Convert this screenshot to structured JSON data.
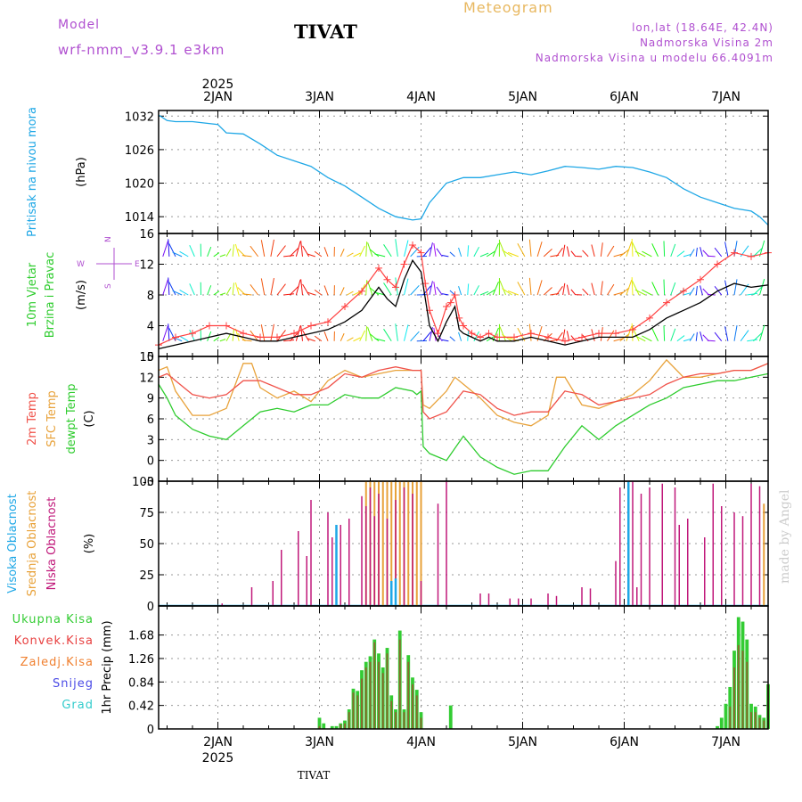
{
  "header": {
    "model_label": "Model",
    "model_name": "wrf-nmm_v3.9.1 e3km",
    "station": "TIVAT",
    "chart_title": "Meteogram",
    "coords": "lon,lat (18.64E, 42.4N)",
    "altitude": "Nadmorska Visina 2m",
    "model_altitude": "Nadmorska Visina u modelu 66.4091m",
    "footer_station": "TIVAT",
    "credit": "made by Angel"
  },
  "colors": {
    "pressure": "#1ea7e6",
    "wind_speed": "#000000",
    "wind_gust": "#ff4040",
    "temp2m": "#f0524a",
    "sfc_temp": "#e8a23a",
    "dewpoint": "#2ecc2e",
    "high_cloud": "#1ea7e6",
    "mid_cloud": "#e8a23a",
    "low_cloud": "#c0187a",
    "total_precip": "#33cc33",
    "conv_precip": "#e84040",
    "freezing": "#f08030",
    "snow": "#4a4ae6",
    "hail": "#33cccc",
    "grid": "#999999"
  },
  "chart_data": {
    "type": "meteogram",
    "year": "2025",
    "time_axis": {
      "start_hour": -14,
      "end_hour": 130,
      "ticks": [
        {
          "hour": 0,
          "label": "2JAN"
        },
        {
          "hour": 24,
          "label": "3JAN"
        },
        {
          "hour": 48,
          "label": "4JAN"
        },
        {
          "hour": 72,
          "label": "5JAN"
        },
        {
          "hour": 96,
          "label": "6JAN"
        },
        {
          "hour": 120,
          "label": "7JAN"
        }
      ]
    },
    "panels": [
      {
        "id": "pressure",
        "ylabel": [
          "Pritisak na nivou mora",
          "(hPa)"
        ],
        "ylim": [
          1011,
          1033
        ],
        "yticks": [
          1014,
          1020,
          1026,
          1032
        ],
        "series": [
          {
            "name": "MSLP",
            "x": [
              -14,
              -12,
              -10,
              -6,
              0,
              2,
              6,
              10,
              14,
              18,
              22,
              26,
              30,
              34,
              38,
              42,
              46,
              48,
              50,
              54,
              58,
              62,
              66,
              70,
              74,
              78,
              82,
              86,
              90,
              94,
              98,
              102,
              106,
              110,
              114,
              118,
              122,
              126,
              128,
              130
            ],
            "y": [
              1032.2,
              1031.2,
              1031.0,
              1031.0,
              1030.5,
              1029.0,
              1028.8,
              1027.0,
              1025.0,
              1024.0,
              1023.0,
              1021.0,
              1019.5,
              1017.5,
              1015.5,
              1014.0,
              1013.4,
              1013.6,
              1016.5,
              1020.0,
              1021.0,
              1021.0,
              1021.5,
              1022.0,
              1021.5,
              1022.2,
              1023.0,
              1022.8,
              1022.5,
              1023.0,
              1022.8,
              1022.0,
              1021.0,
              1019.0,
              1017.5,
              1016.5,
              1015.5,
              1015.0,
              1014.0,
              1012.5
            ]
          }
        ]
      },
      {
        "id": "wind",
        "ylabel": [
          "10m Vjetar",
          "Brzina i Pravac",
          "(m/s)"
        ],
        "compass": [
          "N",
          "W",
          "E",
          "S"
        ],
        "ylim": [
          0,
          16
        ],
        "yticks": [
          0,
          4,
          8,
          12,
          16
        ],
        "series": [
          {
            "name": "speed",
            "x": [
              -14,
              -10,
              -6,
              -2,
              2,
              6,
              10,
              14,
              18,
              22,
              26,
              30,
              34,
              38,
              40,
              42,
              44,
              46,
              48,
              49,
              50,
              52,
              54,
              55,
              56,
              57,
              58,
              60,
              62,
              64,
              66,
              70,
              74,
              78,
              82,
              86,
              90,
              94,
              98,
              102,
              106,
              110,
              114,
              118,
              122,
              126,
              130
            ],
            "y": [
              1.0,
              1.5,
              2.0,
              2.5,
              3.0,
              2.5,
              2.0,
              2.0,
              2.5,
              3.0,
              3.5,
              4.5,
              6.0,
              9.0,
              7.5,
              6.5,
              10.0,
              12.5,
              11.0,
              7.5,
              4.0,
              2.0,
              4.5,
              5.5,
              6.5,
              3.5,
              3.0,
              2.5,
              2.0,
              2.5,
              2.0,
              2.0,
              2.5,
              2.0,
              1.5,
              2.0,
              2.5,
              2.5,
              2.5,
              3.5,
              5.0,
              6.0,
              7.0,
              8.5,
              9.5,
              9.0,
              9.3
            ]
          },
          {
            "name": "gust",
            "x": [
              -14,
              -10,
              -6,
              -2,
              2,
              6,
              10,
              14,
              18,
              22,
              26,
              30,
              34,
              38,
              40,
              42,
              44,
              46,
              48,
              49,
              50,
              52,
              54,
              55,
              56,
              57,
              58,
              60,
              62,
              64,
              66,
              70,
              74,
              78,
              82,
              86,
              90,
              94,
              98,
              102,
              106,
              110,
              114,
              118,
              122,
              126,
              130
            ],
            "y": [
              1.5,
              2.5,
              3.0,
              4.0,
              4.0,
              3.0,
              2.5,
              2.5,
              3.0,
              4.0,
              4.5,
              6.5,
              8.5,
              11.5,
              10.0,
              9.0,
              12.0,
              14.5,
              13.5,
              9.5,
              6.0,
              3.0,
              6.5,
              7.0,
              8.0,
              5.0,
              4.0,
              3.0,
              2.5,
              3.0,
              2.5,
              2.5,
              3.0,
              2.5,
              2.0,
              2.5,
              3.0,
              3.0,
              3.5,
              5.0,
              7.0,
              8.5,
              10.0,
              12.0,
              13.5,
              13.0,
              13.5
            ]
          }
        ],
        "arrow_levels": [
          2,
          8,
          13
        ]
      },
      {
        "id": "temperature",
        "ylabel": [
          "2m Temp",
          "SFC Temp",
          "dewpt Temp",
          "(C)"
        ],
        "ylim": [
          -3,
          15
        ],
        "yticks": [
          -3,
          0,
          3,
          6,
          9,
          12,
          15
        ],
        "series": [
          {
            "name": "2m Temp",
            "x": [
              -14,
              -12,
              -10,
              -6,
              -2,
              2,
              6,
              10,
              14,
              18,
              22,
              26,
              30,
              34,
              38,
              42,
              46,
              48,
              48.5,
              50,
              54,
              58,
              62,
              66,
              70,
              74,
              78,
              82,
              86,
              90,
              94,
              98,
              102,
              106,
              110,
              114,
              118,
              122,
              126,
              130
            ],
            "y": [
              12.0,
              12.5,
              11.5,
              9.5,
              9.0,
              9.5,
              11.5,
              11.5,
              10.5,
              9.5,
              9.5,
              10.5,
              12.5,
              12.0,
              13.0,
              13.5,
              13.0,
              13.0,
              7.0,
              6.0,
              7.0,
              10.0,
              9.5,
              7.5,
              6.5,
              7.0,
              7.0,
              10.0,
              9.5,
              8.0,
              8.5,
              9.0,
              9.5,
              11.0,
              12.0,
              12.5,
              12.5,
              13.0,
              13.0,
              14.0
            ]
          },
          {
            "name": "SFC Temp",
            "x": [
              -14,
              -12,
              -10,
              -6,
              -2,
              2,
              6,
              8,
              10,
              14,
              18,
              22,
              26,
              30,
              34,
              38,
              42,
              46,
              48,
              48.5,
              50,
              54,
              56,
              58,
              62,
              66,
              70,
              74,
              78,
              80,
              82,
              84,
              86,
              90,
              94,
              98,
              102,
              106,
              110,
              114,
              118,
              122,
              126,
              130
            ],
            "y": [
              13.0,
              13.5,
              10.0,
              6.5,
              6.5,
              7.5,
              14.0,
              14.0,
              10.5,
              9.0,
              10.0,
              8.5,
              11.5,
              13.0,
              12.0,
              12.5,
              13.0,
              13.0,
              13.0,
              8.0,
              7.5,
              10.0,
              12.0,
              11.0,
              9.0,
              6.5,
              5.5,
              5.0,
              6.5,
              12.0,
              12.0,
              10.0,
              8.0,
              7.5,
              8.5,
              9.5,
              11.5,
              14.5,
              12.0,
              12.0,
              12.5,
              13.0,
              13.0,
              14.0
            ]
          },
          {
            "name": "dewpt Temp",
            "x": [
              -14,
              -12,
              -10,
              -6,
              -2,
              2,
              6,
              10,
              14,
              18,
              22,
              26,
              30,
              34,
              38,
              42,
              46,
              47,
              48,
              48.5,
              50,
              54,
              58,
              62,
              66,
              70,
              74,
              78,
              82,
              86,
              90,
              94,
              98,
              102,
              106,
              110,
              114,
              118,
              122,
              126,
              130
            ],
            "y": [
              11.0,
              9.0,
              6.5,
              4.5,
              3.5,
              3.0,
              5.0,
              7.0,
              7.5,
              7.0,
              8.0,
              8.0,
              9.5,
              9.0,
              9.0,
              10.5,
              10.0,
              9.5,
              10.0,
              2.0,
              1.0,
              0.0,
              3.5,
              0.5,
              -1.0,
              -2.0,
              -1.5,
              -1.5,
              2.0,
              5.0,
              3.0,
              5.0,
              6.5,
              8.0,
              9.0,
              10.5,
              11.0,
              11.5,
              11.5,
              12.0,
              12.5
            ]
          }
        ]
      },
      {
        "id": "cloud",
        "ylabel": [
          "Visoka Oblacnost",
          "Srednja Oblacnost",
          "Niska Oblacnost",
          "(%)"
        ],
        "ylim": [
          0,
          100
        ],
        "yticks": [
          0,
          25,
          50,
          75,
          100
        ],
        "low": {
          "x": [
            1,
            8,
            13,
            15,
            19,
            21,
            22,
            26,
            27,
            29,
            31,
            34,
            35,
            36,
            37,
            38,
            40,
            42,
            44,
            46,
            48,
            52,
            54,
            62,
            64,
            69,
            71,
            74,
            78,
            80,
            86,
            88,
            94,
            95,
            98,
            99,
            100,
            102,
            105,
            108,
            109,
            111,
            115,
            117,
            119,
            122,
            124,
            126,
            128
          ],
          "y": [
            2,
            15,
            20,
            45,
            60,
            40,
            85,
            75,
            55,
            65,
            70,
            88,
            80,
            95,
            72,
            90,
            70,
            85,
            95,
            90,
            20,
            82,
            100,
            10,
            10,
            6,
            6,
            6,
            10,
            8,
            15,
            14,
            36,
            95,
            100,
            15,
            90,
            95,
            98,
            95,
            65,
            70,
            55,
            98,
            80,
            75,
            72,
            98,
            96
          ]
        },
        "mid": {
          "x": [
            35,
            36,
            37,
            38,
            39,
            40,
            41,
            42,
            43,
            44,
            45,
            46,
            47,
            48,
            129
          ],
          "y": [
            100,
            100,
            100,
            100,
            100,
            100,
            100,
            100,
            100,
            100,
            100,
            100,
            100,
            100,
            82
          ]
        },
        "high": {
          "x": [
            28,
            41,
            42,
            97
          ],
          "y": [
            65,
            20,
            22,
            100
          ]
        }
      },
      {
        "id": "precip",
        "ylabel": [
          "1hr Precip (mm)"
        ],
        "legend": [
          "Ukupna Kisa",
          "Konvek.Kisa",
          "Zaledj.Kisa",
          "Snijeg",
          "Grad"
        ],
        "ylim": [
          0,
          2.2
        ],
        "yticks": [
          0,
          0.42,
          0.84,
          1.26,
          1.68
        ],
        "total": {
          "x": [
            24,
            25,
            27,
            28,
            29,
            30,
            31,
            32,
            33,
            34,
            35,
            36,
            37,
            38,
            39,
            40,
            41,
            42,
            43,
            44,
            45,
            46,
            47,
            48,
            55,
            118,
            119,
            120,
            121,
            122,
            123,
            124,
            125,
            126,
            127,
            128,
            129,
            130
          ],
          "y": [
            0.2,
            0.1,
            0.05,
            0.05,
            0.1,
            0.15,
            0.35,
            0.72,
            0.68,
            1.05,
            1.2,
            1.3,
            1.6,
            1.35,
            1.1,
            1.45,
            0.6,
            0.35,
            1.76,
            0.35,
            1.32,
            0.92,
            0.7,
            0.3,
            0.42,
            0.05,
            0.2,
            0.45,
            0.75,
            1.4,
            2.0,
            1.92,
            1.6,
            0.45,
            0.4,
            0.25,
            0.2,
            0.8
          ]
        },
        "conv": {
          "x": [
            24,
            29,
            30,
            31,
            32,
            33,
            34,
            35,
            36,
            37,
            38,
            39,
            40,
            41,
            42,
            43,
            44,
            45,
            46,
            47,
            48,
            121,
            122,
            123,
            124,
            125,
            126,
            127,
            128,
            129,
            130
          ],
          "y": [
            0.05,
            0.08,
            0.1,
            0.3,
            0.65,
            0.6,
            0.9,
            1.1,
            1.2,
            1.55,
            1.2,
            1.0,
            1.35,
            0.5,
            0.3,
            1.6,
            0.3,
            1.2,
            0.8,
            0.6,
            0.2,
            0.4,
            1.1,
            1.5,
            1.4,
            1.2,
            0.3,
            0.3,
            0.2,
            0.15,
            0.8
          ]
        }
      }
    ]
  }
}
